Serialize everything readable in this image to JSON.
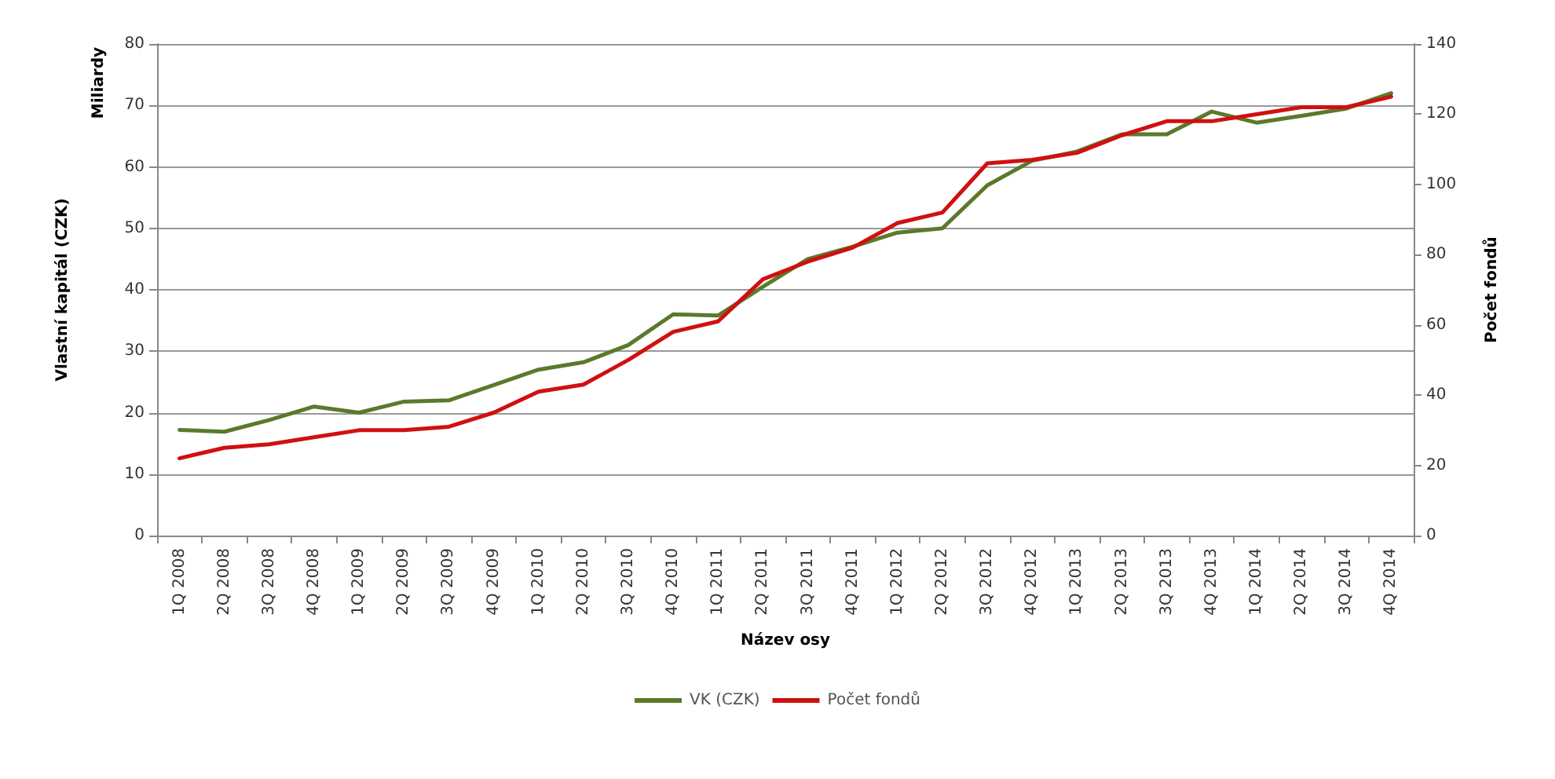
{
  "chart_data": {
    "type": "line",
    "xlabel": "Název osy",
    "ylabel": "Vlastní kapitál (CZK)",
    "y2label": "Počet fondů",
    "annotations": [
      "Miliardy"
    ],
    "categories": [
      "1Q 2008",
      "2Q 2008",
      "3Q 2008",
      "4Q 2008",
      "1Q 2009",
      "2Q 2009",
      "3Q 2009",
      "4Q 2009",
      "1Q 2010",
      "2Q 2010",
      "3Q 2010",
      "4Q 2010",
      "1Q 2011",
      "2Q 2011",
      "3Q 2011",
      "4Q 2011",
      "1Q 2012",
      "2Q 2012",
      "3Q 2012",
      "4Q 2012",
      "1Q 2013",
      "2Q 2013",
      "3Q 2013",
      "4Q 2013",
      "1Q 2014",
      "2Q 2014",
      "3Q 2014",
      "4Q 2014"
    ],
    "series": [
      {
        "name": "VK (CZK)",
        "color": "#5a7a2a",
        "values": [
          17.2,
          16.9,
          18.8,
          21,
          20,
          21.8,
          22,
          24.5,
          27,
          28.2,
          31,
          36,
          35.8,
          40.5,
          45,
          47,
          49.3,
          50,
          57,
          61,
          62.5,
          65.3,
          65.3,
          69,
          67.2,
          68.3,
          69.5,
          72
        ]
      },
      {
        "name": "Počet fondů",
        "color": "#d01010",
        "axis": "y2",
        "values": [
          22,
          25,
          26,
          28,
          30,
          30,
          31,
          35,
          41,
          43,
          50,
          58,
          61,
          73,
          78,
          82,
          89,
          92,
          106,
          107,
          109,
          114,
          118,
          118,
          120,
          122,
          122,
          125
        ]
      }
    ],
    "ylim": [
      0,
      80
    ],
    "yticks": [
      0,
      10,
      20,
      30,
      40,
      50,
      60,
      70,
      80
    ],
    "y2lim": [
      0,
      140
    ],
    "y2ticks": [
      0,
      20,
      40,
      60,
      80,
      100,
      120,
      140
    ],
    "grid": "y",
    "legend": "bottom",
    "marker": "none",
    "line_style": "solid"
  }
}
